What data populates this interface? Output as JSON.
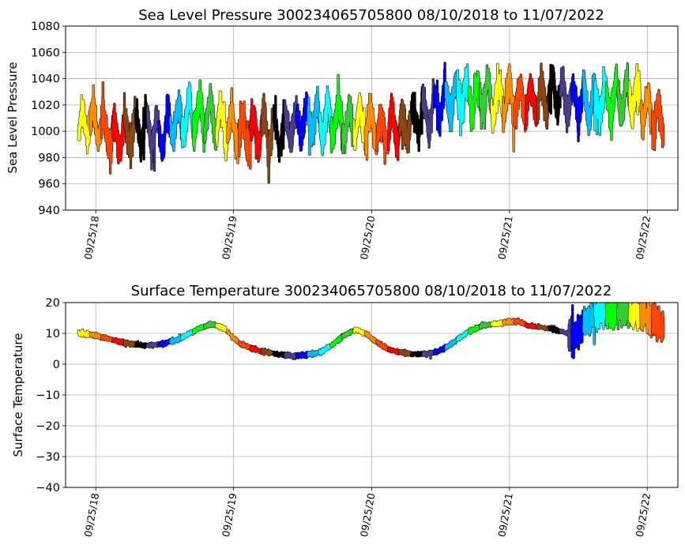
{
  "chart_data": [
    {
      "type": "scatter",
      "title": "Sea Level Pressure 300234065705800  08/10/2018 to 11/07/2022",
      "xlabel": "",
      "ylabel": "Sea Level Pressure",
      "xlim": [
        "2018-07-07",
        "2022-12-15"
      ],
      "ylim": [
        940,
        1080
      ],
      "yticks": [
        "940",
        "960",
        "980",
        "1000",
        "1020",
        "1040",
        "1060",
        "1080"
      ],
      "xticks": [
        "09/25/18",
        "09/25/19",
        "09/25/20",
        "09/25/21",
        "09/25/22"
      ],
      "grid": true,
      "color_cycle": [
        "#ffff00",
        "#ff8c00",
        "#ff4500",
        "#ff0000",
        "#8b4513",
        "#000000",
        "#483d8b",
        "#0000ff",
        "#00bfff",
        "#00ffff",
        "#00ff00",
        "#32cd32"
      ],
      "approx_series": [
        {
          "x": "2018-08-10",
          "y": 1003
        },
        {
          "x": "2018-09-20",
          "y": 1008
        },
        {
          "x": "2018-10-20",
          "y": 1002
        },
        {
          "x": "2018-11-20",
          "y": 995
        },
        {
          "x": "2018-12-20",
          "y": 999
        },
        {
          "x": "2019-01-20",
          "y": 1002
        },
        {
          "x": "2019-02-20",
          "y": 1000
        },
        {
          "x": "2019-03-20",
          "y": 998
        },
        {
          "x": "2019-04-20",
          "y": 1008
        },
        {
          "x": "2019-05-20",
          "y": 1010
        },
        {
          "x": "2019-06-20",
          "y": 1014
        },
        {
          "x": "2019-07-20",
          "y": 1013
        },
        {
          "x": "2019-08-20",
          "y": 1006
        },
        {
          "x": "2019-09-20",
          "y": 1005
        },
        {
          "x": "2019-10-20",
          "y": 998
        },
        {
          "x": "2019-11-20",
          "y": 1000
        },
        {
          "x": "2019-12-20",
          "y": 1000
        },
        {
          "x": "2020-01-20",
          "y": 998
        },
        {
          "x": "2020-02-20",
          "y": 1003
        },
        {
          "x": "2020-03-20",
          "y": 1006
        },
        {
          "x": "2020-04-20",
          "y": 1008
        },
        {
          "x": "2020-05-20",
          "y": 1010
        },
        {
          "x": "2020-06-20",
          "y": 1009
        },
        {
          "x": "2020-07-20",
          "y": 1005
        },
        {
          "x": "2020-08-20",
          "y": 1008
        },
        {
          "x": "2020-09-20",
          "y": 1004
        },
        {
          "x": "2020-10-20",
          "y": 1000
        },
        {
          "x": "2020-11-20",
          "y": 1003
        },
        {
          "x": "2020-12-20",
          "y": 1003
        },
        {
          "x": "2021-01-20",
          "y": 1010
        },
        {
          "x": "2021-02-20",
          "y": 1012
        },
        {
          "x": "2021-03-20",
          "y": 1020
        },
        {
          "x": "2021-04-20",
          "y": 1025
        },
        {
          "x": "2021-05-20",
          "y": 1027
        },
        {
          "x": "2021-06-20",
          "y": 1026
        },
        {
          "x": "2021-07-20",
          "y": 1025
        },
        {
          "x": "2021-08-20",
          "y": 1024
        },
        {
          "x": "2021-09-20",
          "y": 1026
        },
        {
          "x": "2021-10-20",
          "y": 1022
        },
        {
          "x": "2021-11-20",
          "y": 1024
        },
        {
          "x": "2021-12-20",
          "y": 1025
        },
        {
          "x": "2022-01-20",
          "y": 1030
        },
        {
          "x": "2022-02-20",
          "y": 1026
        },
        {
          "x": "2022-03-20",
          "y": 1022
        },
        {
          "x": "2022-04-20",
          "y": 1021
        },
        {
          "x": "2022-05-20",
          "y": 1022
        },
        {
          "x": "2022-06-20",
          "y": 1024
        },
        {
          "x": "2022-07-20",
          "y": 1025
        },
        {
          "x": "2022-08-20",
          "y": 1026
        },
        {
          "x": "2022-09-20",
          "y": 1018
        },
        {
          "x": "2022-10-20",
          "y": 1012
        },
        {
          "x": "2022-11-07",
          "y": 1005
        }
      ]
    },
    {
      "type": "scatter",
      "title": "Surface Temperature 300234065705800  08/10/2018 to 11/07/2022",
      "xlabel": "",
      "ylabel": "Surface Temperature",
      "xlim": [
        "2018-07-07",
        "2022-12-15"
      ],
      "ylim": [
        -40,
        20
      ],
      "yticks": [
        "−40",
        "−30",
        "−20",
        "−10",
        "0",
        "10",
        "20"
      ],
      "xticks": [
        "09/25/18",
        "09/25/19",
        "09/25/20",
        "09/25/21",
        "09/25/22"
      ],
      "grid": true,
      "color_cycle": [
        "#ffff00",
        "#ff8c00",
        "#ff4500",
        "#ff0000",
        "#8b4513",
        "#000000",
        "#483d8b",
        "#0000ff",
        "#00bfff",
        "#00ffff",
        "#00ff00",
        "#32cd32"
      ],
      "approx_series": [
        {
          "x": "2018-08-10",
          "y": 10
        },
        {
          "x": "2018-09-01",
          "y": 9.8
        },
        {
          "x": "2018-10-01",
          "y": 9.2
        },
        {
          "x": "2018-11-01",
          "y": 8.2
        },
        {
          "x": "2018-12-01",
          "y": 7.2
        },
        {
          "x": "2019-01-01",
          "y": 6.5
        },
        {
          "x": "2019-02-01",
          "y": 6.0
        },
        {
          "x": "2019-03-01",
          "y": 6.2
        },
        {
          "x": "2019-04-01",
          "y": 7.0
        },
        {
          "x": "2019-05-01",
          "y": 8.0
        },
        {
          "x": "2019-06-01",
          "y": 10.0
        },
        {
          "x": "2019-07-01",
          "y": 12.0
        },
        {
          "x": "2019-08-01",
          "y": 13.0
        },
        {
          "x": "2019-09-01",
          "y": 11.5
        },
        {
          "x": "2019-09-25",
          "y": 8.5
        },
        {
          "x": "2019-10-15",
          "y": 6.5
        },
        {
          "x": "2019-11-15",
          "y": 5.0
        },
        {
          "x": "2019-12-15",
          "y": 4.0
        },
        {
          "x": "2020-01-15",
          "y": 3.3
        },
        {
          "x": "2020-02-15",
          "y": 2.8
        },
        {
          "x": "2020-03-15",
          "y": 2.7
        },
        {
          "x": "2020-04-15",
          "y": 3.2
        },
        {
          "x": "2020-05-15",
          "y": 4.0
        },
        {
          "x": "2020-06-15",
          "y": 6.5
        },
        {
          "x": "2020-07-15",
          "y": 9.5
        },
        {
          "x": "2020-08-15",
          "y": 11.3
        },
        {
          "x": "2020-09-15",
          "y": 9.5
        },
        {
          "x": "2020-10-15",
          "y": 6.5
        },
        {
          "x": "2020-11-15",
          "y": 4.5
        },
        {
          "x": "2020-12-15",
          "y": 3.7
        },
        {
          "x": "2021-01-15",
          "y": 3.3
        },
        {
          "x": "2021-02-15",
          "y": 3.2
        },
        {
          "x": "2021-03-15",
          "y": 4.0
        },
        {
          "x": "2021-04-15",
          "y": 5.8
        },
        {
          "x": "2021-05-15",
          "y": 8.5
        },
        {
          "x": "2021-06-15",
          "y": 11.0
        },
        {
          "x": "2021-07-15",
          "y": 12.5
        },
        {
          "x": "2021-08-15",
          "y": 13.0
        },
        {
          "x": "2021-09-15",
          "y": 13.5
        },
        {
          "x": "2021-10-15",
          "y": 14.0
        },
        {
          "x": "2021-11-15",
          "y": 12.5
        },
        {
          "x": "2021-12-15",
          "y": 12.0
        },
        {
          "x": "2022-01-15",
          "y": 11.5
        },
        {
          "x": "2022-02-15",
          "y": 10.5
        },
        {
          "x": "2022-03-15",
          "y": 9.0
        },
        {
          "x": "2022-04-15",
          "y": 14.0
        },
        {
          "x": "2022-05-15",
          "y": 16.0
        },
        {
          "x": "2022-06-15",
          "y": 17.0
        },
        {
          "x": "2022-07-15",
          "y": 17.5
        },
        {
          "x": "2022-08-15",
          "y": 17.0
        },
        {
          "x": "2022-09-15",
          "y": 16.0
        },
        {
          "x": "2022-10-15",
          "y": 14.0
        },
        {
          "x": "2022-11-07",
          "y": 12.0
        }
      ]
    }
  ]
}
